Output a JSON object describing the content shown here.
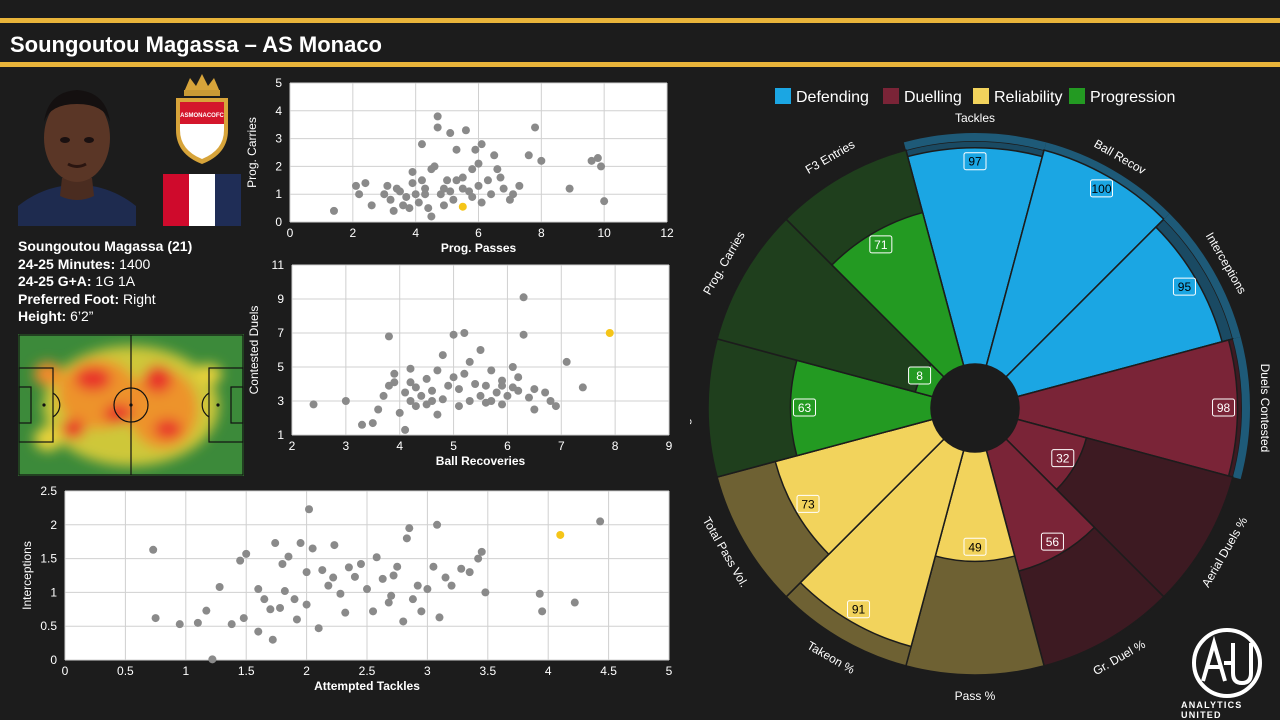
{
  "header": {
    "title": "Soungoutou Magassa – AS Monaco"
  },
  "colors": {
    "accent": "#e9b43a",
    "background": "#1c1c1c",
    "highlight_point": "#f5c518",
    "points": "#8a8a8a",
    "defending": "#1ba6e3",
    "duelling": "#7a2437",
    "reliability": "#f2d35c",
    "progression": "#239a22"
  },
  "player": {
    "crest_text": "ASMONACOFC",
    "flag_colors": [
      "#cf0a2c",
      "#ffffff",
      "#1f2d56"
    ],
    "name_age": "Soungoutou Magassa (21)",
    "minutes_label": "24-25 Minutes:",
    "minutes_value": " 1400",
    "ga_label": "24-25 G+A:",
    "ga_value": " 1G 1A",
    "foot_label": "Preferred Foot:",
    "foot_value": " Right",
    "height_label": "Height:",
    "height_value": " 6’2”"
  },
  "chart_data": [
    {
      "type": "scatter",
      "xlabel": "Prog. Passes",
      "ylabel": "Prog. Carries",
      "xlim": [
        0,
        12
      ],
      "ylim": [
        0,
        5
      ],
      "xticks": [
        0,
        2,
        4,
        6,
        8,
        10,
        12
      ],
      "yticks": [
        0,
        1,
        2,
        3,
        4,
        5
      ],
      "highlight": {
        "x": 5.5,
        "y": 0.55
      },
      "points": [
        [
          1.4,
          0.4
        ],
        [
          2.1,
          1.3
        ],
        [
          2.2,
          1.0
        ],
        [
          2.4,
          1.4
        ],
        [
          2.6,
          0.6
        ],
        [
          3.0,
          1.0
        ],
        [
          3.1,
          1.3
        ],
        [
          3.2,
          0.8
        ],
        [
          3.3,
          0.4
        ],
        [
          3.5,
          1.1
        ],
        [
          3.6,
          0.6
        ],
        [
          3.7,
          0.9
        ],
        [
          3.9,
          1.8
        ],
        [
          3.9,
          1.4
        ],
        [
          4.0,
          1.0
        ],
        [
          4.1,
          0.7
        ],
        [
          4.2,
          1.5
        ],
        [
          4.2,
          2.8
        ],
        [
          4.3,
          1.2
        ],
        [
          4.4,
          0.5
        ],
        [
          4.5,
          0.2
        ],
        [
          4.5,
          1.9
        ],
        [
          4.6,
          2.0
        ],
        [
          4.7,
          3.4
        ],
        [
          4.7,
          3.8
        ],
        [
          4.8,
          1.0
        ],
        [
          4.9,
          0.6
        ],
        [
          5.0,
          1.5
        ],
        [
          5.1,
          3.2
        ],
        [
          5.1,
          1.1
        ],
        [
          5.2,
          0.8
        ],
        [
          5.3,
          1.5
        ],
        [
          5.3,
          2.6
        ],
        [
          5.5,
          1.2
        ],
        [
          5.6,
          3.3
        ],
        [
          5.7,
          1.1
        ],
        [
          5.8,
          1.9
        ],
        [
          5.8,
          0.9
        ],
        [
          5.9,
          2.6
        ],
        [
          6.0,
          2.1
        ],
        [
          6.0,
          1.3
        ],
        [
          6.1,
          0.7
        ],
        [
          6.1,
          2.8
        ],
        [
          6.3,
          1.5
        ],
        [
          6.4,
          1.0
        ],
        [
          6.5,
          2.4
        ],
        [
          6.6,
          1.9
        ],
        [
          6.8,
          1.2
        ],
        [
          7.0,
          0.8
        ],
        [
          7.1,
          1.0
        ],
        [
          7.3,
          1.3
        ],
        [
          7.6,
          2.4
        ],
        [
          7.8,
          3.4
        ],
        [
          8.0,
          2.2
        ],
        [
          8.9,
          1.2
        ],
        [
          9.6,
          2.2
        ],
        [
          9.8,
          2.3
        ],
        [
          9.9,
          2.0
        ],
        [
          10.0,
          0.75
        ],
        [
          3.8,
          0.5
        ],
        [
          4.9,
          1.2
        ],
        [
          5.5,
          1.6
        ],
        [
          4.3,
          1.0
        ],
        [
          3.4,
          1.2
        ],
        [
          6.7,
          1.6
        ]
      ]
    },
    {
      "type": "scatter",
      "xlabel": "Ball Recoveries",
      "ylabel": "Contested Duels",
      "xlim": [
        2,
        9
      ],
      "ylim": [
        1,
        11
      ],
      "xticks": [
        2,
        3,
        4,
        5,
        6,
        7,
        8,
        9
      ],
      "yticks": [
        1,
        3,
        5,
        7,
        9,
        11
      ],
      "highlight": {
        "x": 7.9,
        "y": 7.0
      },
      "points": [
        [
          2.4,
          2.8
        ],
        [
          3.0,
          3.0
        ],
        [
          3.3,
          1.6
        ],
        [
          3.5,
          1.7
        ],
        [
          3.6,
          2.5
        ],
        [
          3.7,
          3.3
        ],
        [
          3.8,
          3.9
        ],
        [
          3.8,
          6.8
        ],
        [
          3.9,
          4.1
        ],
        [
          4.0,
          2.3
        ],
        [
          4.1,
          3.5
        ],
        [
          4.1,
          1.3
        ],
        [
          4.2,
          3.0
        ],
        [
          4.2,
          4.9
        ],
        [
          4.3,
          3.8
        ],
        [
          4.3,
          2.7
        ],
        [
          4.4,
          3.3
        ],
        [
          4.5,
          4.3
        ],
        [
          4.5,
          2.8
        ],
        [
          4.6,
          3.6
        ],
        [
          4.7,
          4.8
        ],
        [
          4.7,
          2.2
        ],
        [
          4.8,
          3.1
        ],
        [
          4.8,
          5.7
        ],
        [
          4.9,
          3.9
        ],
        [
          5.0,
          4.4
        ],
        [
          5.0,
          6.9
        ],
        [
          5.1,
          2.7
        ],
        [
          5.1,
          3.7
        ],
        [
          5.2,
          4.6
        ],
        [
          5.2,
          7.0
        ],
        [
          5.3,
          3.0
        ],
        [
          5.3,
          5.3
        ],
        [
          5.4,
          4.0
        ],
        [
          5.5,
          3.3
        ],
        [
          5.5,
          6.0
        ],
        [
          5.6,
          2.9
        ],
        [
          5.6,
          3.9
        ],
        [
          5.7,
          4.8
        ],
        [
          5.8,
          3.5
        ],
        [
          5.9,
          4.2
        ],
        [
          5.9,
          2.8
        ],
        [
          6.0,
          3.3
        ],
        [
          6.1,
          5.0
        ],
        [
          6.1,
          3.8
        ],
        [
          6.2,
          3.6
        ],
        [
          6.3,
          6.9
        ],
        [
          6.3,
          9.1
        ],
        [
          6.4,
          3.2
        ],
        [
          6.5,
          3.7
        ],
        [
          6.5,
          2.5
        ],
        [
          6.7,
          3.5
        ],
        [
          6.8,
          3.0
        ],
        [
          6.9,
          2.7
        ],
        [
          7.1,
          5.3
        ],
        [
          7.4,
          3.8
        ],
        [
          4.2,
          4.1
        ],
        [
          3.9,
          4.6
        ],
        [
          5.7,
          3.0
        ],
        [
          5.9,
          3.9
        ],
        [
          6.2,
          4.4
        ],
        [
          4.6,
          3.0
        ]
      ]
    },
    {
      "type": "scatter",
      "xlabel": "Attempted Tackles",
      "ylabel": "Interceptions",
      "xlim": [
        0,
        5
      ],
      "ylim": [
        0,
        2.5
      ],
      "xticks": [
        0,
        0.5,
        1,
        1.5,
        2,
        2.5,
        3,
        3.5,
        4,
        4.5,
        5
      ],
      "yticks": [
        0,
        0.5,
        1,
        1.5,
        2,
        2.5
      ],
      "highlight": {
        "x": 4.1,
        "y": 1.85
      },
      "points": [
        [
          0.73,
          1.63
        ],
        [
          0.75,
          0.62
        ],
        [
          0.95,
          0.53
        ],
        [
          1.1,
          0.55
        ],
        [
          1.17,
          0.73
        ],
        [
          1.22,
          0.01
        ],
        [
          1.28,
          1.08
        ],
        [
          1.38,
          0.53
        ],
        [
          1.45,
          1.47
        ],
        [
          1.5,
          1.57
        ],
        [
          1.48,
          0.62
        ],
        [
          1.6,
          0.42
        ],
        [
          1.65,
          0.9
        ],
        [
          1.7,
          0.75
        ],
        [
          1.72,
          0.3
        ],
        [
          1.74,
          1.73
        ],
        [
          1.78,
          0.77
        ],
        [
          1.8,
          1.42
        ],
        [
          1.82,
          1.02
        ],
        [
          1.85,
          1.53
        ],
        [
          1.9,
          0.9
        ],
        [
          1.92,
          0.6
        ],
        [
          1.95,
          1.73
        ],
        [
          2.0,
          0.82
        ],
        [
          2.02,
          2.23
        ],
        [
          2.05,
          1.65
        ],
        [
          2.1,
          0.47
        ],
        [
          2.13,
          1.33
        ],
        [
          2.18,
          1.1
        ],
        [
          2.22,
          1.22
        ],
        [
          2.23,
          1.7
        ],
        [
          2.28,
          0.98
        ],
        [
          2.32,
          0.7
        ],
        [
          2.35,
          1.37
        ],
        [
          2.4,
          1.23
        ],
        [
          2.45,
          1.42
        ],
        [
          2.5,
          1.05
        ],
        [
          2.55,
          0.72
        ],
        [
          2.58,
          1.52
        ],
        [
          2.63,
          1.2
        ],
        [
          2.68,
          0.85
        ],
        [
          2.72,
          1.25
        ],
        [
          2.75,
          1.38
        ],
        [
          2.8,
          0.57
        ],
        [
          2.83,
          1.8
        ],
        [
          2.85,
          1.95
        ],
        [
          2.88,
          0.9
        ],
        [
          2.92,
          1.1
        ],
        [
          2.95,
          0.72
        ],
        [
          3.0,
          1.05
        ],
        [
          3.05,
          1.38
        ],
        [
          3.08,
          2.0
        ],
        [
          3.1,
          0.63
        ],
        [
          3.15,
          1.22
        ],
        [
          3.2,
          1.1
        ],
        [
          3.28,
          1.35
        ],
        [
          3.35,
          1.3
        ],
        [
          3.42,
          1.5
        ],
        [
          3.45,
          1.6
        ],
        [
          3.48,
          1.0
        ],
        [
          3.93,
          0.98
        ],
        [
          3.95,
          0.72
        ],
        [
          4.22,
          0.85
        ],
        [
          4.43,
          2.05
        ],
        [
          2.0,
          1.3
        ],
        [
          1.6,
          1.05
        ],
        [
          2.7,
          0.95
        ]
      ]
    },
    {
      "type": "radar",
      "legend": [
        "Defending",
        "Duelling",
        "Reliability",
        "Progression"
      ],
      "categories": [
        "Tackles",
        "Ball Recov",
        "Interceptions",
        "Duels Contested",
        "Aerial Duels %",
        "Gr. Duel %",
        "Pass %",
        "Takeon %",
        "Total Pass Vol.",
        "Prog. Passes",
        "Prog. Carries",
        "F3 Entries"
      ],
      "groups": [
        "Defending",
        "Defending",
        "Defending",
        "Duelling",
        "Duelling",
        "Duelling",
        "Reliability",
        "Reliability",
        "Reliability",
        "Progression",
        "Progression",
        "Progression"
      ],
      "values": [
        97,
        100,
        95,
        98,
        32,
        56,
        49,
        91,
        73,
        63,
        8,
        71
      ]
    }
  ],
  "logo": {
    "text": "ANALYTICS UNITED",
    "mark": "A·U"
  }
}
